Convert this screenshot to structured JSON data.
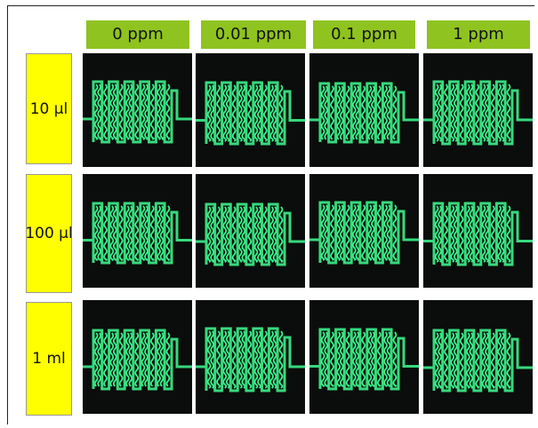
{
  "columns": [
    "0 ppm",
    "0.01 ppm",
    "0.1 ppm",
    "1 ppm"
  ],
  "rows": [
    "10 µl",
    "100 µl",
    "1 ml"
  ],
  "colors": {
    "column_label_bg": "#8fc31f",
    "row_label_bg": "#ffff00",
    "panel_bg": "#0a0d0b",
    "channel_glow": "#3cf08a"
  },
  "panel_content": "green fluorescent serpentine microchannel pattern on black background"
}
